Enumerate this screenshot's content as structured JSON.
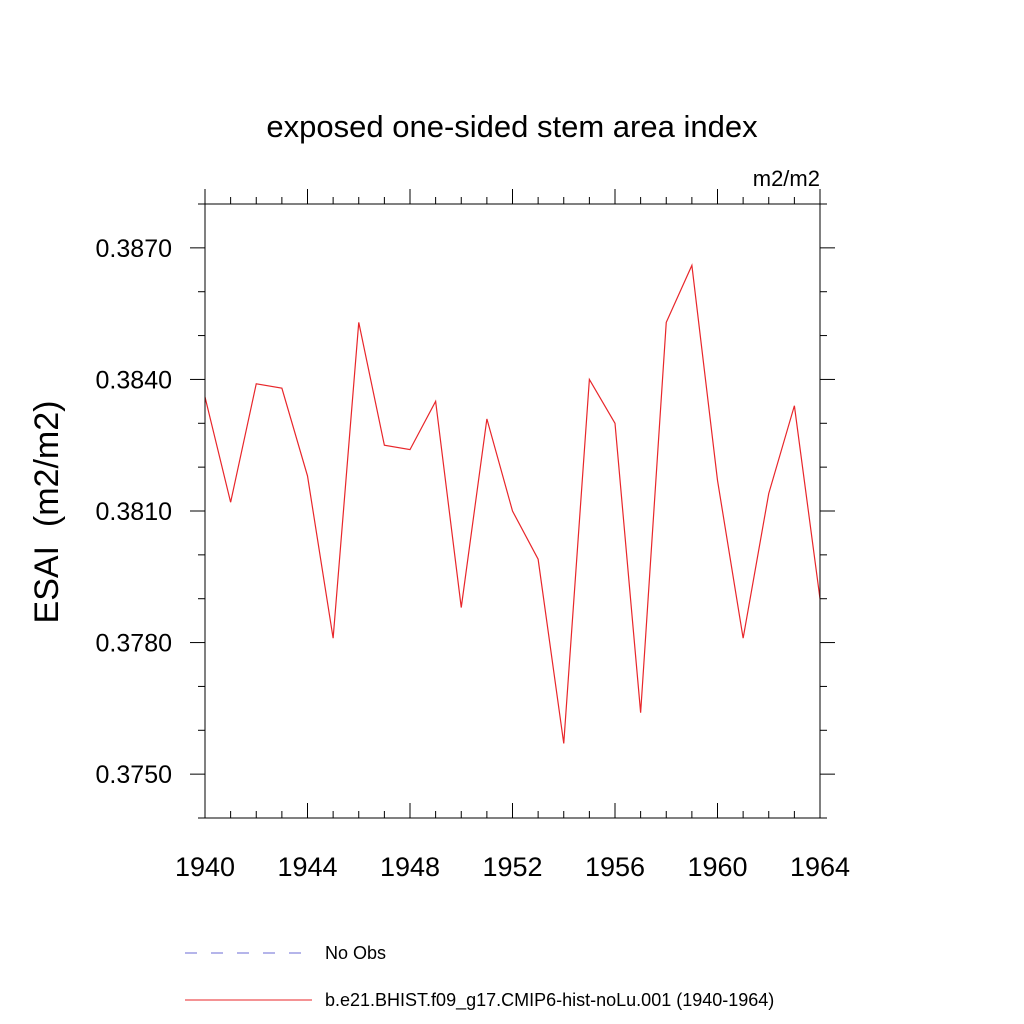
{
  "chart_data": {
    "type": "line",
    "title": "exposed one-sided stem area index",
    "units": "m2/m2",
    "ylabel": "ESAI  (m2/m2)",
    "xlabel": "",
    "xlim": [
      1940,
      1964
    ],
    "ylim": [
      0.374,
      0.388
    ],
    "x_ticks": [
      1940,
      1944,
      1948,
      1952,
      1956,
      1960,
      1964
    ],
    "x_tick_labels": [
      "1940",
      "1944",
      "1948",
      "1952",
      "1956",
      "1960",
      "1964"
    ],
    "y_ticks": [
      0.375,
      0.378,
      0.381,
      0.384,
      0.387
    ],
    "y_tick_labels": [
      "0.3750",
      "0.3780",
      "0.3810",
      "0.3840",
      "0.3870"
    ],
    "grid": false,
    "legend_position": "bottom",
    "series": [
      {
        "name": "No Obs",
        "color": "#6b6bd6",
        "dash": "dashed",
        "x": [],
        "y": []
      },
      {
        "name": "b.e21.BHIST.f09_g17.CMIP6-hist-noLu.001 (1940-1964)",
        "color": "#e8262a",
        "dash": "solid",
        "x": [
          1940,
          1941,
          1942,
          1943,
          1944,
          1945,
          1946,
          1947,
          1948,
          1949,
          1950,
          1951,
          1952,
          1953,
          1954,
          1955,
          1956,
          1957,
          1958,
          1959,
          1960,
          1961,
          1962,
          1963,
          1964
        ],
        "y": [
          0.3836,
          0.3812,
          0.3839,
          0.3838,
          0.3818,
          0.3781,
          0.3853,
          0.3825,
          0.3824,
          0.3835,
          0.3788,
          0.3831,
          0.381,
          0.3799,
          0.3757,
          0.384,
          0.383,
          0.3764,
          0.3853,
          0.3866,
          0.3817,
          0.3781,
          0.3814,
          0.3834,
          0.379
        ]
      }
    ]
  }
}
